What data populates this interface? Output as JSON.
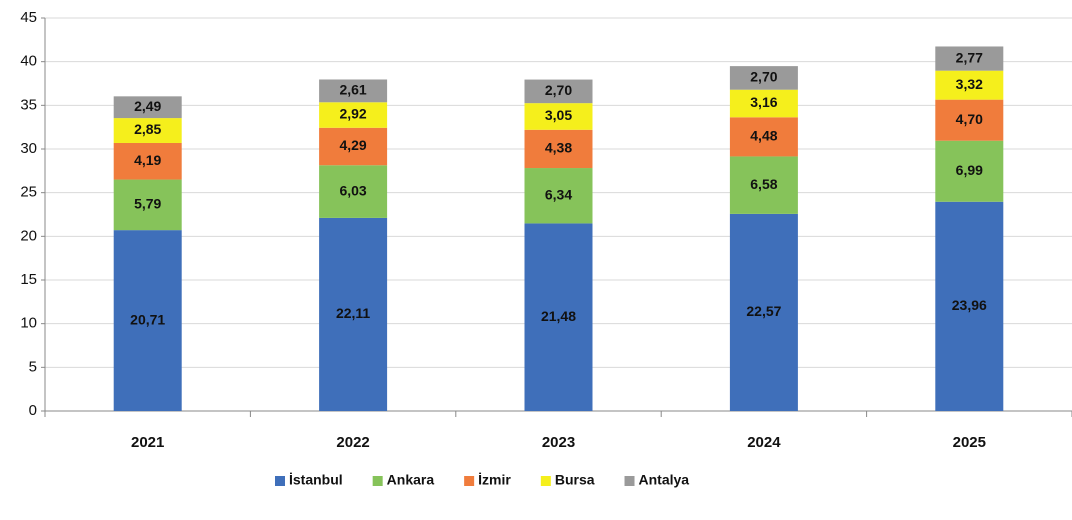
{
  "chart_data": {
    "type": "stacked_bar",
    "categories": [
      "2021",
      "2022",
      "2023",
      "2024",
      "2025"
    ],
    "series": [
      {
        "name": "İstanbul",
        "color": "#3f6fba",
        "values": [
          20.71,
          22.11,
          21.48,
          22.57,
          23.96
        ],
        "value_labels": [
          "20,71",
          "22,11",
          "21,48",
          "22,57",
          "23,96"
        ]
      },
      {
        "name": "Ankara",
        "color": "#86c35a",
        "values": [
          5.79,
          6.03,
          6.34,
          6.58,
          6.99
        ],
        "value_labels": [
          "5,79",
          "6,03",
          "6,34",
          "6,58",
          "6,99"
        ]
      },
      {
        "name": "İzmir",
        "color": "#f07c3c",
        "values": [
          4.19,
          4.29,
          4.38,
          4.48,
          4.7
        ],
        "value_labels": [
          "4,19",
          "4,29",
          "4,38",
          "4,48",
          "4,70"
        ]
      },
      {
        "name": "Bursa",
        "color": "#f5ef1c",
        "values": [
          2.85,
          2.92,
          3.05,
          3.16,
          3.32
        ],
        "value_labels": [
          "2,85",
          "2,92",
          "3,05",
          "3,16",
          "3,32"
        ]
      },
      {
        "name": "Antalya",
        "color": "#9a9a9a",
        "values": [
          2.49,
          2.61,
          2.7,
          2.7,
          2.77
        ],
        "value_labels": [
          "2,49",
          "2,61",
          "2,70",
          "2,70",
          "2,77"
        ]
      }
    ],
    "ylim": [
      0,
      45
    ],
    "yticks": [
      0,
      5,
      10,
      15,
      20,
      25,
      30,
      35,
      40,
      45
    ],
    "grid": true,
    "legend": "bottom"
  }
}
